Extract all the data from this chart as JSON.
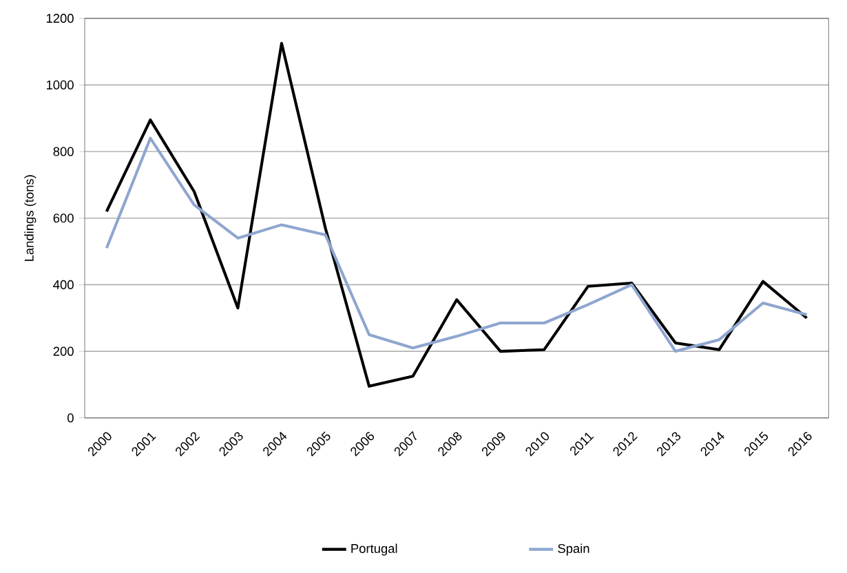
{
  "chart_data": {
    "type": "line",
    "ylabel": "Landings (tons)",
    "categories": [
      "2000",
      "2001",
      "2002",
      "2003",
      "2004",
      "2005",
      "2006",
      "2007",
      "2008",
      "2009",
      "2010",
      "2011",
      "2012",
      "2013",
      "2014",
      "2015",
      "2016"
    ],
    "series": [
      {
        "name": "Portugal",
        "color": "#000000",
        "values": [
          620,
          895,
          680,
          330,
          1125,
          570,
          95,
          125,
          355,
          200,
          205,
          395,
          405,
          225,
          205,
          410,
          300
        ]
      },
      {
        "name": "Spain",
        "color": "#8ea6cf",
        "values": [
          510,
          840,
          640,
          540,
          580,
          550,
          250,
          210,
          245,
          285,
          285,
          340,
          400,
          200,
          235,
          345,
          310
        ]
      }
    ],
    "ylim": [
      0,
      1200
    ],
    "yticks": [
      0,
      200,
      400,
      600,
      800,
      1000,
      1200
    ],
    "grid": "y",
    "legend": "bottom",
    "marker": "none",
    "line_style": "solid"
  }
}
